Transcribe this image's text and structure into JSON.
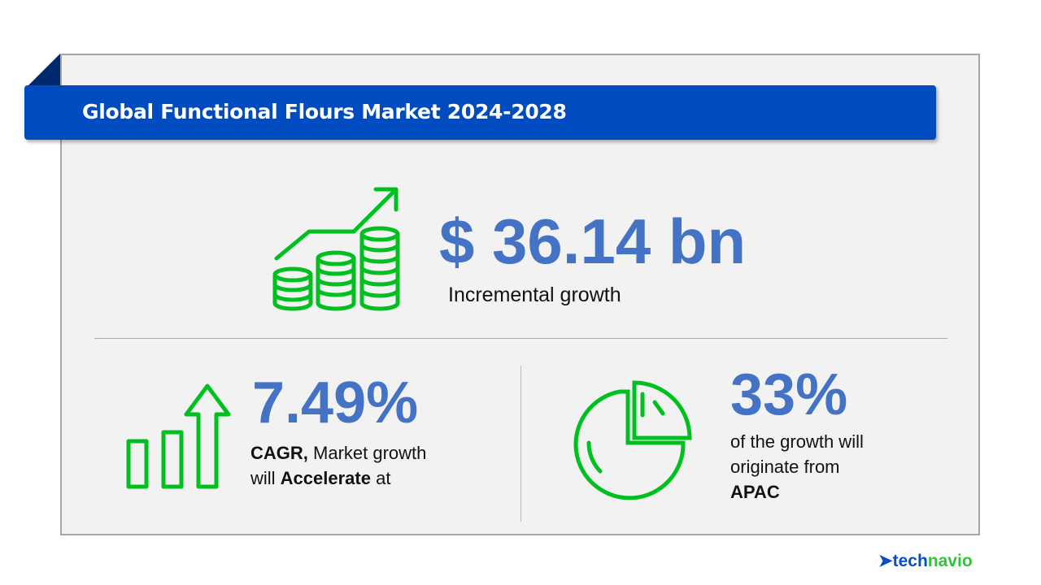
{
  "title": "Global Functional Flours Market 2024-2028",
  "incremental": {
    "value": "$ 36.14 bn",
    "label": "Incremental growth"
  },
  "cagr": {
    "value": "7.49%",
    "line1_bold": "CAGR,",
    "line1_rest": " Market growth",
    "line2_pre": "will ",
    "line2_bold": "Accelerate",
    "line2_post": " at"
  },
  "region": {
    "value": "33%",
    "line1": "of the growth will",
    "line2": "originate from",
    "region": "APAC"
  },
  "brand": {
    "part1": "tech",
    "part2": "navio"
  },
  "colors": {
    "banner": "#004bbf",
    "accent_text": "#4472c4",
    "icon_green": "#00c020"
  },
  "icons": [
    "coins-growth-icon",
    "bar-arrow-up-icon",
    "pie-chart-icon",
    "technavio-logo-icon"
  ]
}
